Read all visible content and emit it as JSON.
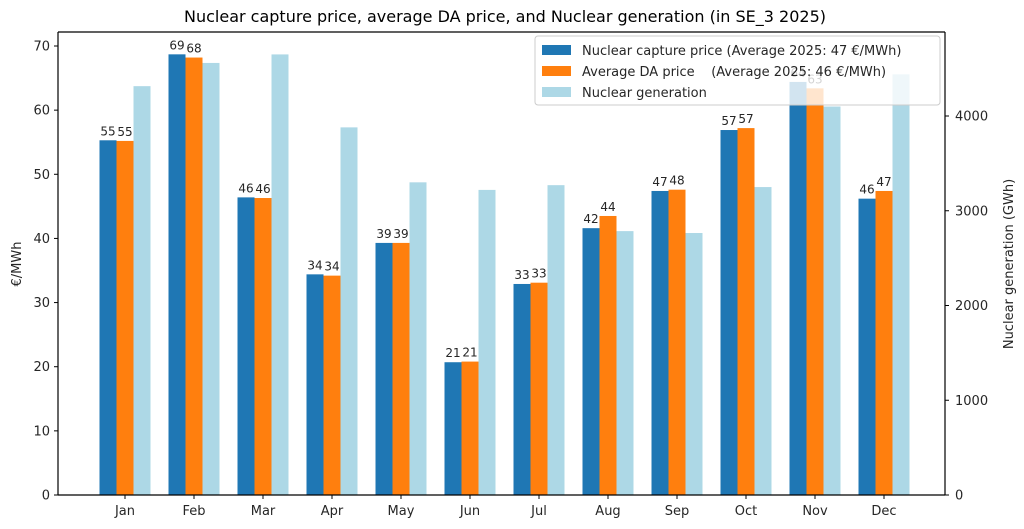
{
  "chart_data": {
    "type": "bar",
    "title": "Nuclear capture price, average DA price, and Nuclear generation (in SE_3 2025)",
    "xlabel": "",
    "ylabel": "€/MWh",
    "ylabel_right": "Nuclear generation (GWh)",
    "ylim": [
      0,
      72
    ],
    "ylim_right": [
      0,
      4750
    ],
    "yticks": [
      0,
      10,
      20,
      30,
      40,
      50,
      60,
      70
    ],
    "yticks_right": [
      0,
      1000,
      2000,
      3000,
      4000
    ],
    "grid": false,
    "legend_position": "top-right",
    "categories": [
      "Jan",
      "Feb",
      "Mar",
      "Apr",
      "May",
      "Jun",
      "Jul",
      "Aug",
      "Sep",
      "Oct",
      "Nov",
      "Dec"
    ],
    "series": [
      {
        "name": "Nuclear capture price (Average 2025: 47 €/MWh)",
        "axis": "left",
        "color": "#1f77b4",
        "values": [
          55.3,
          68.7,
          46.4,
          34.4,
          39.3,
          20.7,
          32.9,
          41.6,
          47.4,
          56.9,
          64.4,
          46.2
        ],
        "labels": [
          "55",
          "69",
          "46",
          "34",
          "39",
          "21",
          "33",
          "42",
          "47",
          "57",
          "64",
          "46"
        ]
      },
      {
        "name": "Average DA price    (Average 2025: 46 €/MWh)",
        "axis": "left",
        "color": "#ff7f0e",
        "values": [
          55.2,
          68.2,
          46.3,
          34.2,
          39.3,
          20.8,
          33.1,
          43.5,
          47.6,
          57.2,
          63.4,
          47.4
        ],
        "labels": [
          "55",
          "68",
          "46",
          "34",
          "39",
          "21",
          "33",
          "44",
          "48",
          "57",
          "63",
          "47"
        ]
      },
      {
        "name": "Nuclear generation",
        "axis": "right",
        "color": "#add8e6",
        "values": [
          4315,
          4560,
          4650,
          3880,
          3300,
          3220,
          3270,
          2785,
          2765,
          3250,
          4100,
          4440
        ],
        "labels": []
      }
    ]
  }
}
